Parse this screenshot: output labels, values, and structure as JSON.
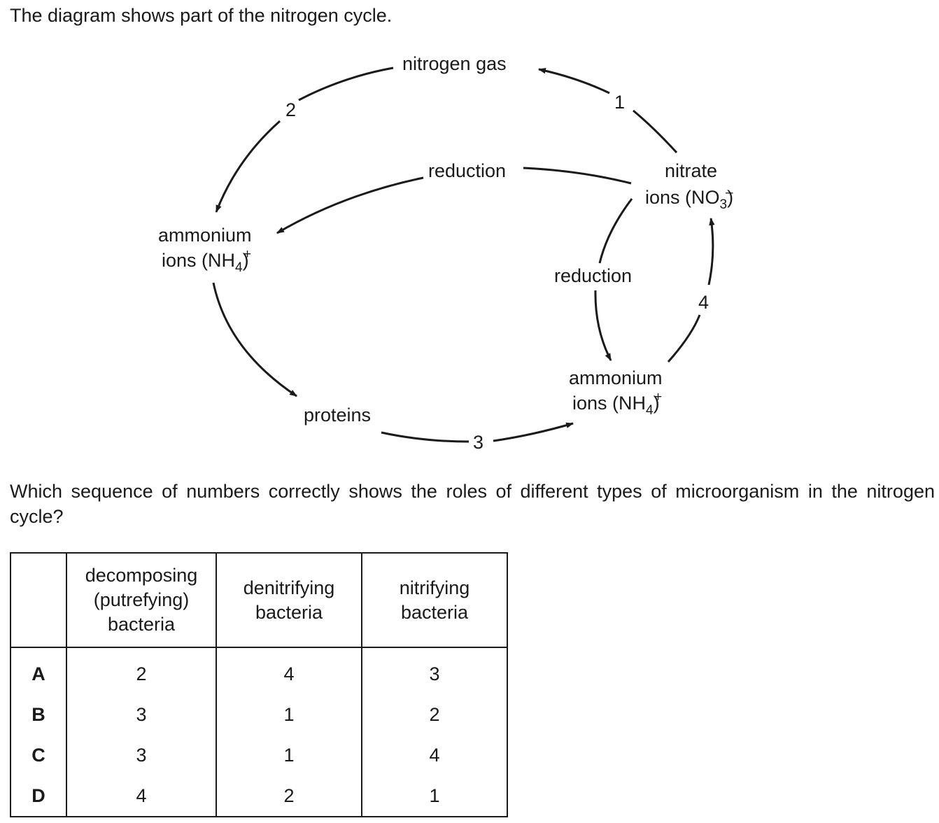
{
  "intro": "The diagram shows part of the nitrogen cycle.",
  "diagram": {
    "nodes": {
      "nitrogen_gas": "nitrogen gas",
      "nitrate_line1": "nitrate",
      "nitrate_line2_prefix": "ions (NO",
      "nitrate_sub": "3",
      "nitrate_sup": "–",
      "nitrate_suffix": ")",
      "ammonium_line1": "ammonium",
      "ammonium_line2_prefix": "ions (NH",
      "ammonium_sub": "4",
      "ammonium_sup": "+",
      "ammonium_suffix": ")",
      "proteins": "proteins"
    },
    "edge_labels": {
      "one": "1",
      "two": "2",
      "three": "3",
      "four": "4",
      "reduction_upper": "reduction",
      "reduction_lower": "reduction"
    }
  },
  "question": "Which sequence of numbers correctly shows the roles of different types of microorganism in the nitrogen cycle?",
  "table": {
    "headers": [
      "",
      [
        "decomposing",
        "(putrefying)",
        "bacteria"
      ],
      [
        "denitrifying",
        "bacteria"
      ],
      [
        "nitrifying",
        "bacteria"
      ]
    ],
    "rows": [
      {
        "option": "A",
        "values": [
          "2",
          "4",
          "3"
        ]
      },
      {
        "option": "B",
        "values": [
          "3",
          "1",
          "2"
        ]
      },
      {
        "option": "C",
        "values": [
          "3",
          "1",
          "4"
        ]
      },
      {
        "option": "D",
        "values": [
          "4",
          "2",
          "1"
        ]
      }
    ]
  }
}
